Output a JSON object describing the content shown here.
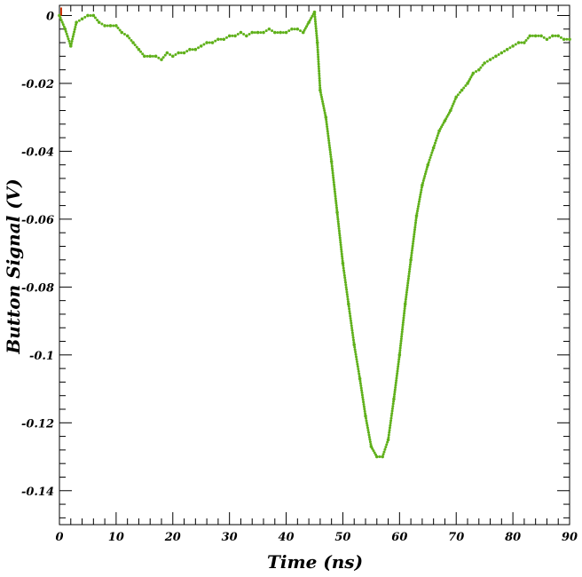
{
  "chart_data": {
    "type": "scatter",
    "xlabel": "Time (ns)",
    "ylabel": "Button Signal (V)",
    "xlim": [
      0,
      90
    ],
    "ylim": [
      -0.15,
      0.003
    ],
    "x_ticks": [
      "0",
      "10",
      "20",
      "30",
      "40",
      "50",
      "60",
      "70",
      "80",
      "90"
    ],
    "y_ticks": [
      "0",
      "-0.02",
      "-0.04",
      "-0.06",
      "-0.08",
      "-0.1",
      "-0.12",
      "-0.14"
    ],
    "grid": false,
    "colors": {
      "series": "#5fb01a",
      "frame": "#000000",
      "marker_start": "#cc3300"
    },
    "series": [
      {
        "x": [
          0,
          1,
          2,
          3,
          4,
          5,
          6,
          7,
          8,
          9,
          10,
          11,
          12,
          13,
          14,
          15,
          16,
          17,
          18,
          19,
          20,
          21,
          22,
          23,
          24,
          25,
          26,
          27,
          28,
          29,
          30,
          31,
          32,
          33,
          34,
          35,
          36,
          37,
          38,
          39,
          40,
          41,
          42,
          43,
          44,
          45,
          45.5,
          46,
          47,
          48,
          49,
          50,
          51,
          52,
          53,
          54,
          55,
          56,
          57,
          58,
          59,
          60,
          61,
          62,
          63,
          64,
          65,
          66,
          67,
          68,
          69,
          70,
          71,
          72,
          73,
          74,
          75,
          76,
          77,
          78,
          79,
          80,
          81,
          82,
          83,
          84,
          85,
          86,
          87,
          88,
          89,
          90
        ],
        "y": [
          0,
          -0.004,
          -0.009,
          -0.002,
          -0.001,
          0,
          0,
          -0.002,
          -0.003,
          -0.003,
          -0.003,
          -0.005,
          -0.006,
          -0.008,
          -0.01,
          -0.012,
          -0.012,
          -0.012,
          -0.013,
          -0.011,
          -0.012,
          -0.011,
          -0.011,
          -0.01,
          -0.01,
          -0.009,
          -0.008,
          -0.008,
          -0.007,
          -0.007,
          -0.006,
          -0.006,
          -0.005,
          -0.006,
          -0.005,
          -0.005,
          -0.005,
          -0.004,
          -0.005,
          -0.005,
          -0.005,
          -0.004,
          -0.004,
          -0.005,
          -0.002,
          0.001,
          -0.008,
          -0.022,
          -0.03,
          -0.043,
          -0.058,
          -0.073,
          -0.085,
          -0.097,
          -0.107,
          -0.118,
          -0.127,
          -0.13,
          -0.13,
          -0.125,
          -0.113,
          -0.1,
          -0.085,
          -0.072,
          -0.059,
          -0.05,
          -0.044,
          -0.039,
          -0.034,
          -0.031,
          -0.028,
          -0.024,
          -0.022,
          -0.02,
          -0.017,
          -0.016,
          -0.014,
          -0.013,
          -0.012,
          -0.011,
          -0.01,
          -0.009,
          -0.008,
          -0.008,
          -0.006,
          -0.006,
          -0.006,
          -0.007,
          -0.006,
          -0.006,
          -0.007,
          -0.007
        ]
      }
    ]
  }
}
